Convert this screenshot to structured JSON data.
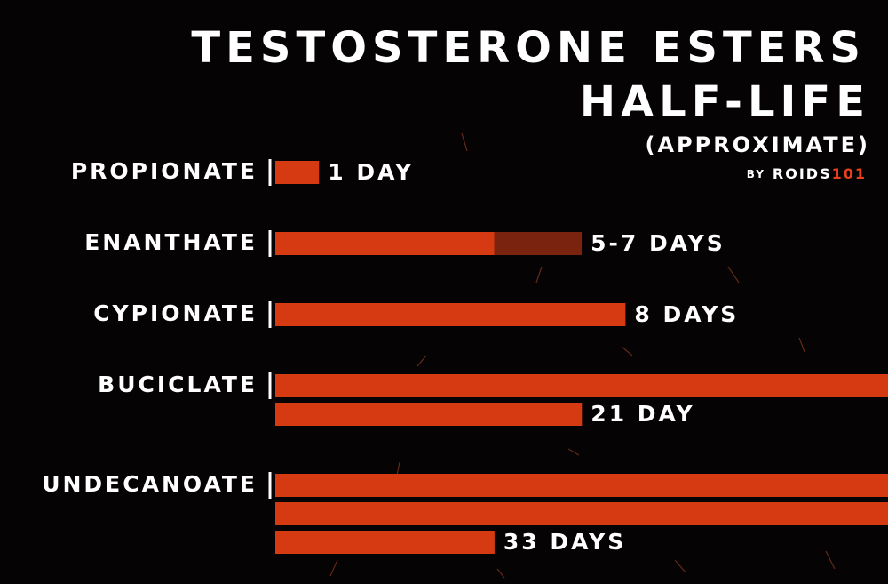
{
  "chart_data": {
    "type": "bar",
    "title": "TESTOSTERONE ESTERS",
    "subtitle": "HALF-LIFE",
    "note": "(APPROXIMATE)",
    "byline": {
      "by": "BY",
      "brand": "ROIDS",
      "brand_number": "101"
    },
    "categories": [
      "PROPIONATE",
      "ENANTHATE",
      "CYPIONATE",
      "BUCICLATE",
      "UNDECANOATE"
    ],
    "values": [
      1,
      5,
      8,
      21,
      33
    ],
    "values_high": [
      null,
      7,
      null,
      null,
      null
    ],
    "value_labels": [
      "1 DAY",
      "5-7 DAYS",
      "8 DAYS",
      "21 DAY",
      "33 DAYS"
    ],
    "color": "#d63a12",
    "range_color": "#7a2410",
    "brand_color": "#e8401a"
  }
}
